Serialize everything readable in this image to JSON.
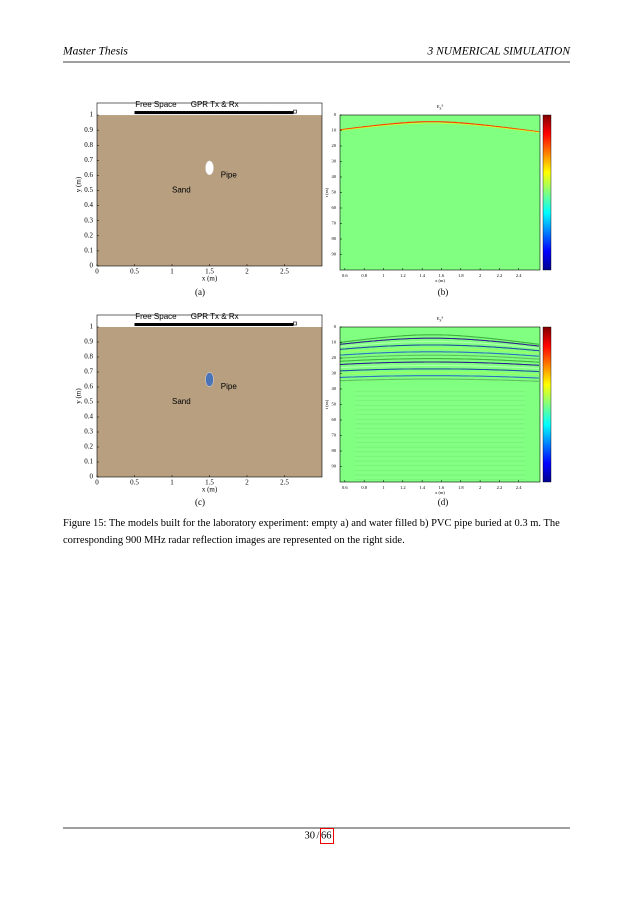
{
  "header": {
    "left": "Master Thesis",
    "right": "3   NUMERICAL SIMULATION"
  },
  "figures": [
    {
      "type": "model",
      "label": "(a)",
      "xlabel": "x (m)",
      "ylabel": "y (m)",
      "xlim": [
        0,
        3
      ],
      "ylim": [
        0,
        1.08
      ],
      "xticks": [
        0,
        0.5,
        1,
        1.5,
        2,
        2.5
      ],
      "yticks": [
        0,
        0.1,
        0.2,
        0.3,
        0.4,
        0.5,
        0.6,
        0.7,
        0.8,
        0.9,
        1
      ],
      "texts": {
        "free_space": "Free Space",
        "antenna": "GPR Tx & Rx",
        "pipe": "Pipe",
        "sand": "Sand"
      },
      "pipe_color": "#ffffff"
    },
    {
      "type": "radargram",
      "label": "(b)",
      "title": {
        "base": "E",
        "sub": "z",
        "sup": "s"
      },
      "xlabel": "x (m)",
      "ylabel": "t (ns)",
      "xlim": [
        0.55,
        2.62
      ],
      "ylim": [
        100,
        0
      ],
      "xticks": [
        0.6,
        0.8,
        1,
        1.2,
        1.4,
        1.6,
        1.8,
        2,
        2.2,
        2.4
      ],
      "yticks": [
        0,
        10,
        20,
        30,
        40,
        50,
        60,
        70,
        80,
        90
      ],
      "reflection": "single"
    },
    {
      "type": "model",
      "label": "(c)",
      "xlabel": "x (m)",
      "ylabel": "y (m)",
      "xlim": [
        0,
        3
      ],
      "ylim": [
        0,
        1.08
      ],
      "xticks": [
        0,
        0.5,
        1,
        1.5,
        2,
        2.5
      ],
      "yticks": [
        0,
        0.1,
        0.2,
        0.3,
        0.4,
        0.5,
        0.6,
        0.7,
        0.8,
        0.9,
        1
      ],
      "texts": {
        "free_space": "Free Space",
        "antenna": "GPR Tx & Rx",
        "pipe": "Pipe",
        "sand": "Sand"
      },
      "pipe_color": "#4a73b8"
    },
    {
      "type": "radargram",
      "label": "(d)",
      "title": {
        "base": "E",
        "sub": "z",
        "sup": "s"
      },
      "xlabel": "x (m)",
      "ylabel": "t (ns)",
      "xlim": [
        0.55,
        2.62
      ],
      "ylim": [
        100,
        0
      ],
      "xticks": [
        0.6,
        0.8,
        1,
        1.2,
        1.4,
        1.6,
        1.8,
        2,
        2.2,
        2.4
      ],
      "yticks": [
        0,
        10,
        20,
        30,
        40,
        50,
        60,
        70,
        80,
        90
      ],
      "reflection": "multiple"
    }
  ],
  "caption": "Figure 15: The models built for the laboratory experiment: empty a) and water filled b) PVC pipe buried at 0.3 m. The corresponding 900 MHz radar reflection images are represented on the right side.",
  "footer": {
    "page": "30",
    "total": "66"
  }
}
